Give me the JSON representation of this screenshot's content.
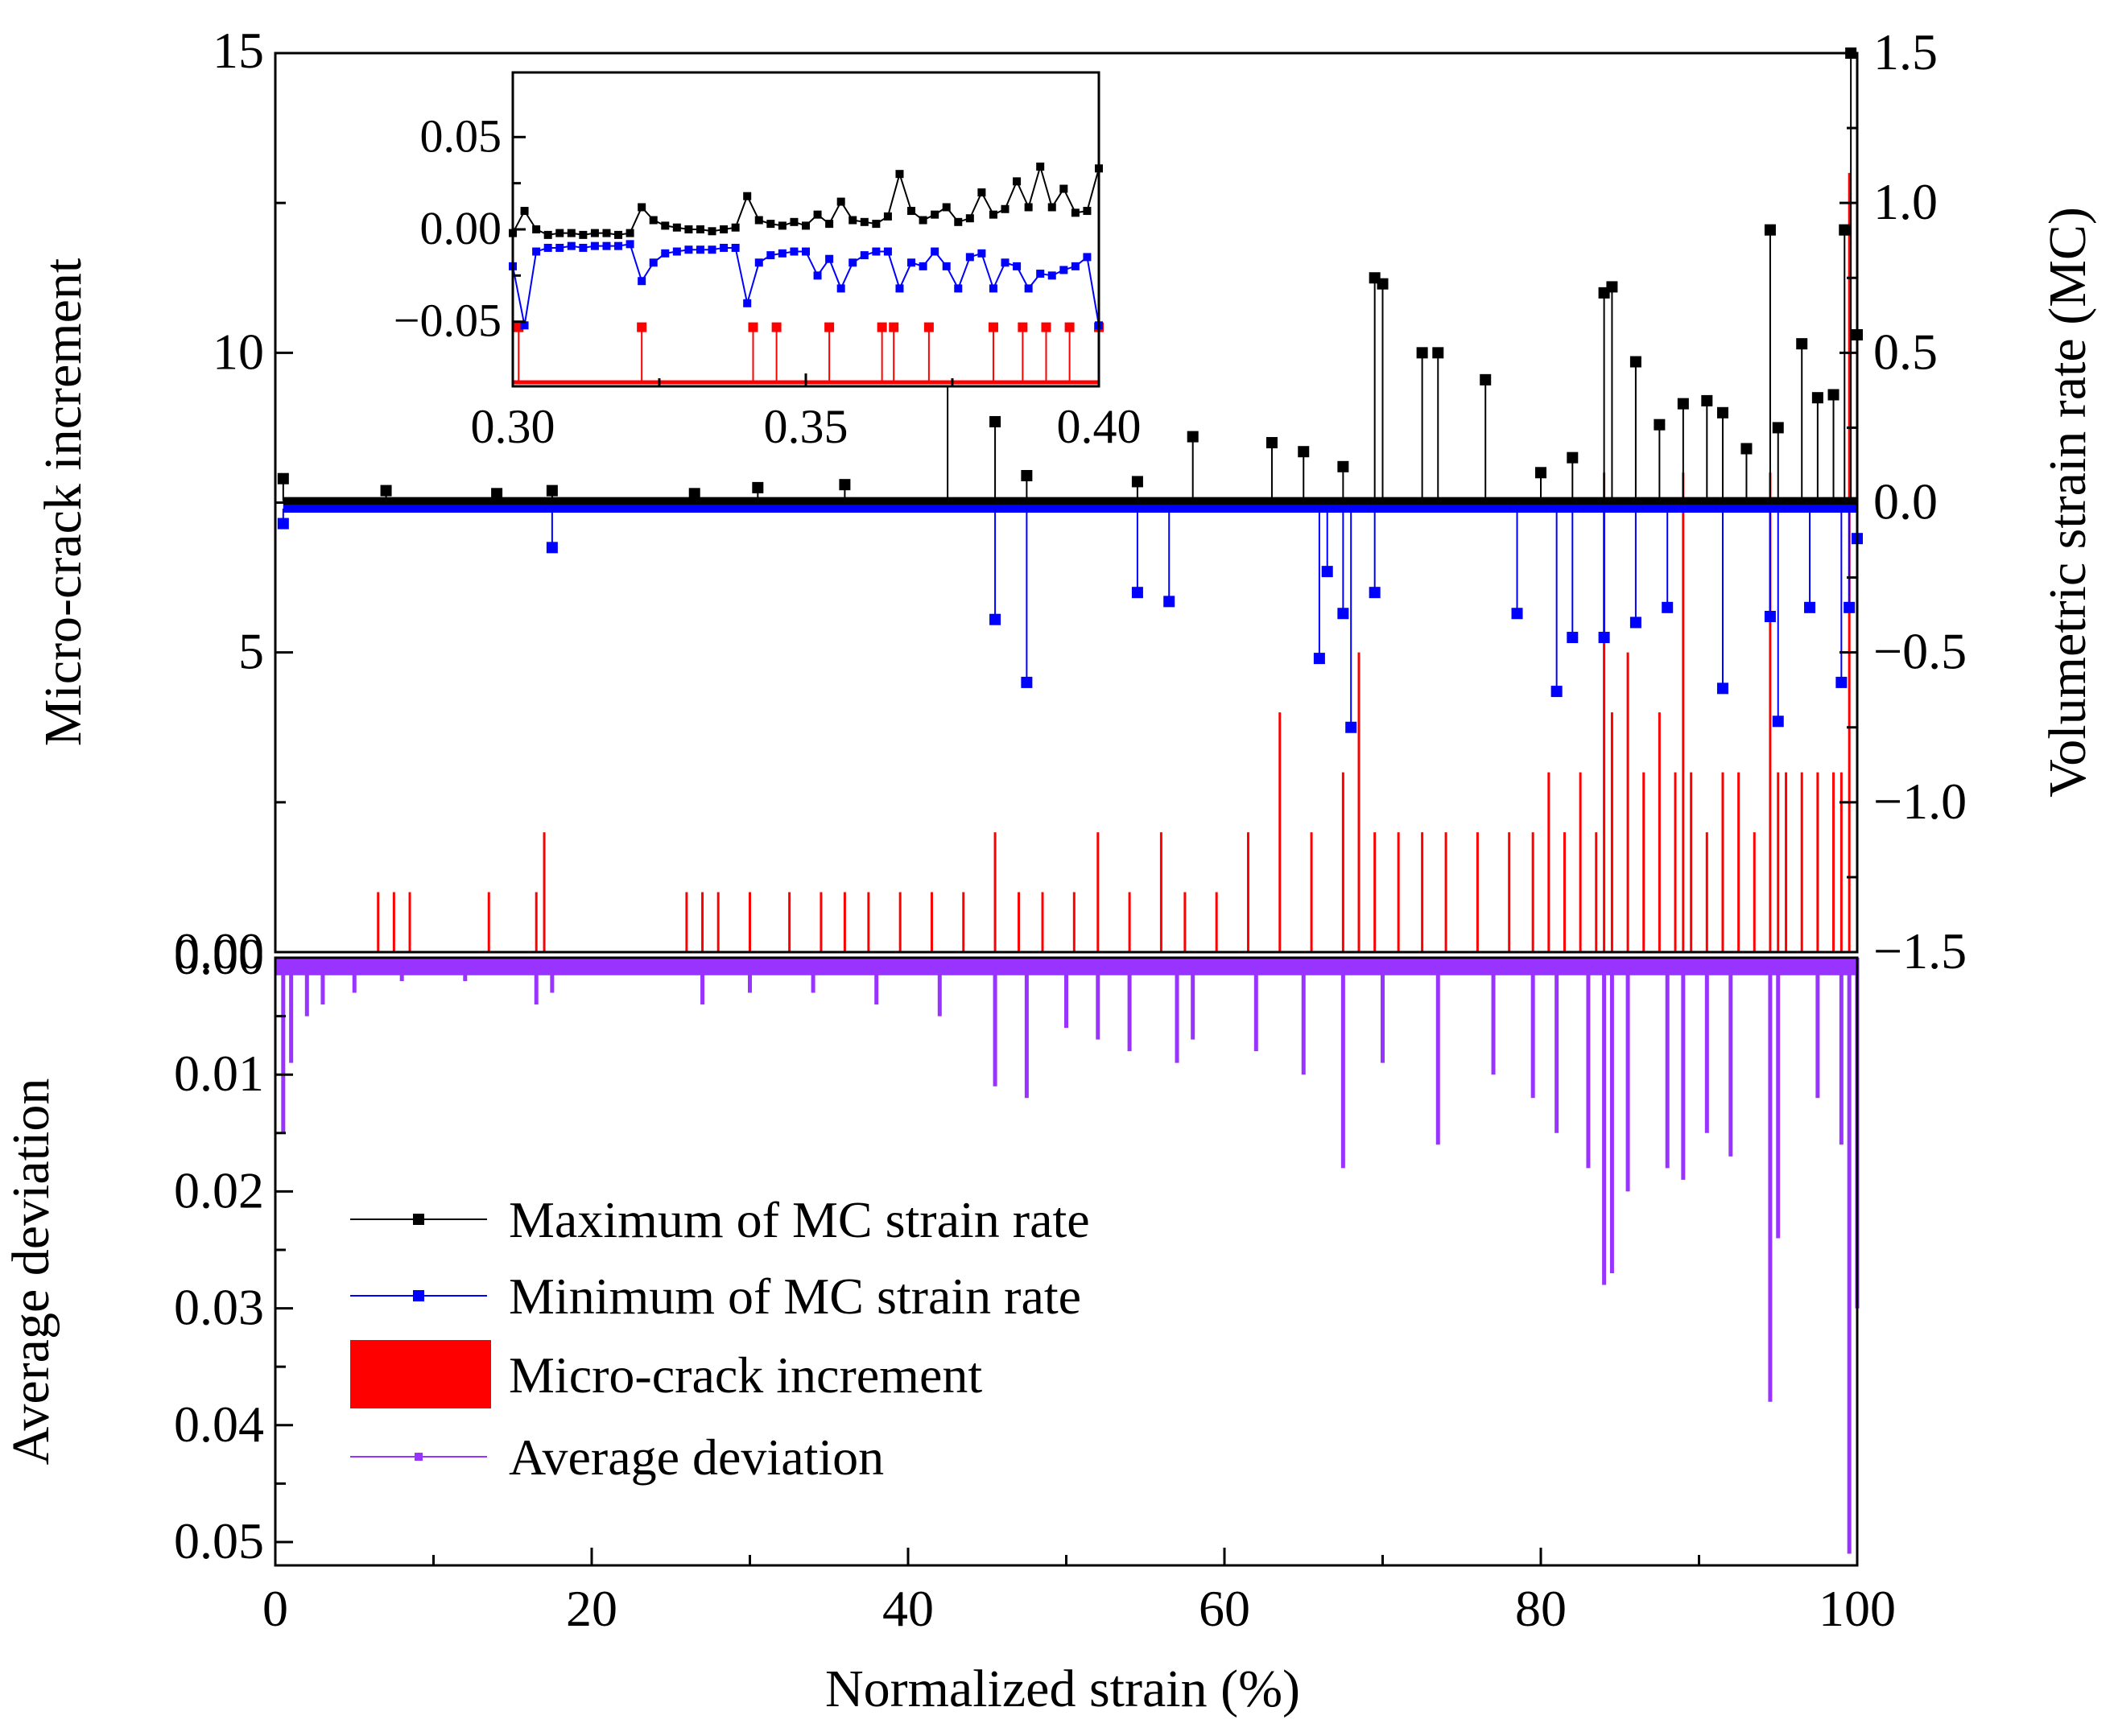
{
  "chart_data": [
    {
      "name": "upper-panel",
      "type": "line+bar",
      "xlabel": "Normalized strain (%)",
      "xlim": [
        0,
        100
      ],
      "xticks": [
        0,
        20,
        40,
        60,
        80,
        100
      ],
      "xtick_labels": [
        "0",
        "20",
        "40",
        "60",
        "80",
        "100"
      ],
      "left_axis": {
        "label": "Micro-crack increment",
        "lim": [
          0,
          15
        ],
        "ticks": [
          0,
          5,
          10,
          15
        ],
        "tick_labels": [
          "0.00",
          "5",
          "10",
          "15"
        ],
        "minor_ticks": [
          2.5,
          7.5,
          12.5
        ]
      },
      "right_axis": {
        "label": "Volumetric strain rate (MC)",
        "lim": [
          -1.5,
          1.5
        ],
        "ticks": [
          -1.5,
          -1.0,
          -0.5,
          0.0,
          0.5,
          1.0,
          1.5
        ],
        "tick_labels": [
          "−1.5",
          "−1.0",
          "−0.5",
          "0.0",
          "0.5",
          "1.0",
          "1.5"
        ]
      },
      "series": [
        {
          "name": "Maximum of MC strain rate",
          "axis": "right",
          "color": "#000000",
          "marker": "square",
          "x": [
            0.5,
            7,
            14,
            17.5,
            26.5,
            30.5,
            36,
            42.5,
            45.5,
            47.5,
            54.5,
            58,
            63,
            65,
            67.5,
            69.5,
            70,
            72.5,
            73.5,
            76.5,
            80,
            82,
            84,
            84.5,
            86,
            87.5,
            89,
            90.5,
            91.5,
            93,
            94.5,
            95,
            96.5,
            97.5,
            98.5,
            99.2,
            99.6,
            100
          ],
          "y": [
            0.08,
            0.04,
            0.03,
            0.04,
            0.03,
            0.05,
            0.06,
            0.44,
            0.27,
            0.09,
            0.07,
            0.22,
            0.2,
            0.17,
            0.12,
            0.75,
            0.73,
            0.5,
            0.5,
            0.41,
            0.1,
            0.15,
            0.7,
            0.72,
            0.47,
            0.26,
            0.33,
            0.34,
            0.3,
            0.18,
            0.91,
            0.25,
            0.53,
            0.35,
            0.36,
            0.91,
            1.5,
            0.56
          ]
        },
        {
          "name": "Minimum of MC strain rate",
          "axis": "right",
          "color": "#0000ff",
          "marker": "square",
          "x": [
            0.5,
            17.5,
            45.5,
            47.5,
            54.5,
            56.5,
            66,
            66.5,
            67.5,
            68,
            69.5,
            78.5,
            81,
            82,
            84,
            86,
            88,
            91.5,
            94.5,
            95,
            97,
            99,
            99.5,
            100
          ],
          "y": [
            -0.07,
            -0.15,
            -0.39,
            -0.6,
            -0.3,
            -0.33,
            -0.52,
            -0.23,
            -0.37,
            -0.75,
            -0.3,
            -0.37,
            -0.63,
            -0.45,
            -0.45,
            -0.4,
            -0.35,
            -0.62,
            -0.38,
            -0.73,
            -0.35,
            -0.6,
            -0.35,
            -0.12
          ]
        },
        {
          "name": "Micro-crack increment",
          "axis": "left",
          "color": "#ff0000",
          "type": "bar",
          "x": [
            6.5,
            7.5,
            8.5,
            13.5,
            16.5,
            17,
            26,
            27,
            28,
            30,
            32.5,
            34.5,
            36,
            37.5,
            39.5,
            41.5,
            43.5,
            45.5,
            47,
            48.5,
            50.5,
            52,
            54,
            56,
            57.5,
            59.5,
            61.5,
            63.5,
            65.5,
            67.5,
            68.5,
            69.5,
            71,
            72.5,
            74,
            76,
            78,
            79.5,
            80.5,
            81.5,
            82.5,
            83.5,
            84,
            84.5,
            85.5,
            86.5,
            87.5,
            88.5,
            89,
            89.5,
            90.5,
            91.5,
            92.5,
            93.5,
            94.5,
            95,
            95.5,
            96.5,
            97.5,
            98.5,
            99,
            99.5,
            100
          ],
          "y": [
            1,
            1,
            1,
            1,
            1,
            2,
            1,
            1,
            1,
            1,
            1,
            1,
            1,
            1,
            1,
            1,
            1,
            2,
            1,
            1,
            1,
            2,
            1,
            2,
            1,
            1,
            2,
            4,
            2,
            3,
            5,
            2,
            2,
            2,
            2,
            2,
            2,
            2,
            3,
            2,
            3,
            2,
            8,
            4,
            5,
            3,
            4,
            3,
            8,
            3,
            2,
            3,
            3,
            2,
            8,
            3,
            3,
            3,
            3,
            3,
            3,
            13,
            3
          ]
        }
      ],
      "inset": {
        "xlim": [
          0.3,
          0.4
        ],
        "ylim": [
          -0.085,
          0.085
        ],
        "xticks": [
          0.3,
          0.35,
          0.4
        ],
        "xtick_labels": [
          "0.30",
          "0.35",
          "0.40"
        ],
        "yticks": [
          -0.05,
          0.0,
          0.05
        ],
        "ytick_labels": [
          "−0.05",
          "0.00",
          "0.05"
        ],
        "max_series": {
          "x": [
            0.3,
            0.302,
            0.304,
            0.306,
            0.308,
            0.31,
            0.312,
            0.314,
            0.316,
            0.318,
            0.32,
            0.322,
            0.324,
            0.326,
            0.328,
            0.33,
            0.332,
            0.334,
            0.336,
            0.338,
            0.34,
            0.342,
            0.344,
            0.346,
            0.348,
            0.35,
            0.352,
            0.354,
            0.356,
            0.358,
            0.36,
            0.362,
            0.364,
            0.366,
            0.368,
            0.37,
            0.372,
            0.374,
            0.376,
            0.378,
            0.38,
            0.382,
            0.384,
            0.386,
            0.388,
            0.39,
            0.392,
            0.394,
            0.396,
            0.398,
            0.4
          ],
          "y": [
            -0.002,
            0.01,
            0.0,
            -0.003,
            -0.002,
            -0.002,
            -0.003,
            -0.002,
            -0.002,
            -0.003,
            -0.002,
            0.012,
            0.005,
            0.002,
            0.001,
            0.0,
            0.0,
            -0.001,
            0.0,
            0.001,
            0.018,
            0.005,
            0.003,
            0.002,
            0.004,
            0.002,
            0.008,
            0.003,
            0.015,
            0.005,
            0.004,
            0.003,
            0.007,
            0.03,
            0.01,
            0.005,
            0.008,
            0.012,
            0.004,
            0.006,
            0.02,
            0.008,
            0.011,
            0.026,
            0.012,
            0.034,
            0.012,
            0.022,
            0.009,
            0.01,
            0.033
          ]
        },
        "min_series": {
          "x": [
            0.3,
            0.302,
            0.304,
            0.306,
            0.308,
            0.31,
            0.312,
            0.314,
            0.316,
            0.318,
            0.32,
            0.322,
            0.324,
            0.326,
            0.328,
            0.33,
            0.332,
            0.334,
            0.336,
            0.338,
            0.34,
            0.342,
            0.344,
            0.346,
            0.348,
            0.35,
            0.352,
            0.354,
            0.356,
            0.358,
            0.36,
            0.362,
            0.364,
            0.366,
            0.368,
            0.37,
            0.372,
            0.374,
            0.376,
            0.378,
            0.38,
            0.382,
            0.384,
            0.386,
            0.388,
            0.39,
            0.392,
            0.394,
            0.396,
            0.398,
            0.4
          ],
          "y": [
            -0.02,
            -0.052,
            -0.012,
            -0.01,
            -0.01,
            -0.009,
            -0.01,
            -0.009,
            -0.009,
            -0.009,
            -0.008,
            -0.028,
            -0.018,
            -0.013,
            -0.012,
            -0.011,
            -0.011,
            -0.011,
            -0.01,
            -0.01,
            -0.04,
            -0.018,
            -0.014,
            -0.013,
            -0.012,
            -0.012,
            -0.025,
            -0.016,
            -0.032,
            -0.018,
            -0.014,
            -0.012,
            -0.012,
            -0.032,
            -0.018,
            -0.02,
            -0.012,
            -0.02,
            -0.032,
            -0.015,
            -0.013,
            -0.032,
            -0.018,
            -0.02,
            -0.032,
            -0.024,
            -0.025,
            -0.022,
            -0.02,
            -0.015,
            -0.052
          ]
        },
        "crack_series": {
          "x": [
            0.301,
            0.322,
            0.341,
            0.345,
            0.354,
            0.363,
            0.365,
            0.371,
            0.382,
            0.387,
            0.391,
            0.395,
            0.4
          ],
          "y": [
            1,
            1,
            1,
            1,
            1,
            1,
            1,
            1,
            1,
            1,
            1,
            1,
            1
          ]
        }
      }
    },
    {
      "name": "lower-panel",
      "type": "bar",
      "ylabel": "Average deviation",
      "ylim": [
        0,
        0.052
      ],
      "y_inverted": true,
      "yticks": [
        0.01,
        0.02,
        0.03,
        0.04,
        0.05
      ],
      "ytick_labels": [
        "0.01",
        "0.02",
        "0.03",
        "0.04",
        "0.05"
      ],
      "series": [
        {
          "name": "Average deviation",
          "color": "#9933ff",
          "x": [
            0.5,
            1,
            2,
            3,
            5,
            8,
            12,
            16.5,
            17.5,
            20,
            25,
            27,
            30,
            34,
            38,
            42,
            45.5,
            47.5,
            50,
            52,
            54,
            57,
            58,
            62,
            65,
            67.5,
            70,
            73.5,
            77,
            79.5,
            81,
            83,
            84,
            84.5,
            85.5,
            88,
            89,
            90.5,
            92,
            94.5,
            95,
            97.5,
            99,
            99.5,
            100
          ],
          "y": [
            0.015,
            0.009,
            0.005,
            0.004,
            0.003,
            0.002,
            0.002,
            0.004,
            0.003,
            0.001,
            0.001,
            0.004,
            0.003,
            0.003,
            0.004,
            0.005,
            0.011,
            0.012,
            0.006,
            0.007,
            0.008,
            0.009,
            0.007,
            0.008,
            0.01,
            0.018,
            0.009,
            0.016,
            0.01,
            0.012,
            0.015,
            0.018,
            0.028,
            0.027,
            0.02,
            0.018,
            0.019,
            0.015,
            0.017,
            0.038,
            0.024,
            0.012,
            0.016,
            0.051,
            0.03
          ]
        }
      ]
    }
  ],
  "legend": {
    "placement": "lower-left",
    "entries": [
      {
        "label": "Maximum of MC strain rate",
        "color": "#000000",
        "style": "line-marker"
      },
      {
        "label": "Minimum of MC strain rate",
        "color": "#0000ff",
        "style": "line-marker"
      },
      {
        "label": "Micro-crack increment",
        "color": "#ff0000",
        "style": "bar"
      },
      {
        "label": "Average deviation",
        "color": "#9933ff",
        "style": "line-marker"
      }
    ]
  }
}
